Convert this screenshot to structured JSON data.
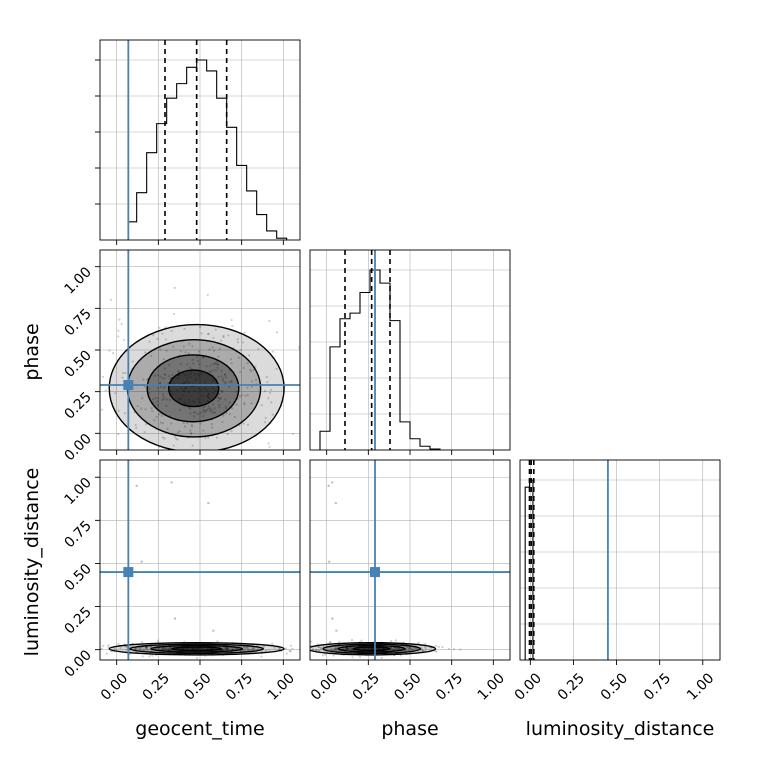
{
  "chart_data": {
    "type": "corner",
    "parameters": [
      "geocent_time",
      "phase",
      "luminosity_distance"
    ],
    "tick_labels": [
      "0.00",
      "0.25",
      "0.50",
      "0.75",
      "1.00"
    ],
    "truths": {
      "geocent_time": 0.07,
      "phase": 0.29,
      "luminosity_distance": 0.45
    },
    "quantiles": {
      "geocent_time": [
        0.29,
        0.48,
        0.66
      ],
      "phase": [
        0.11,
        0.27,
        0.38
      ],
      "luminosity_distance": [
        -0.005,
        0.005,
        0.02
      ]
    },
    "axes": {
      "geocent_time": {
        "range": [
          -0.1,
          1.1
        ]
      },
      "phase": {
        "range": [
          -0.1,
          1.1
        ]
      },
      "luminosity_distance": {
        "range": [
          -0.06,
          1.1
        ]
      }
    },
    "histograms": {
      "geocent_time": {
        "bin_edges": [
          0.07,
          0.12,
          0.18,
          0.24,
          0.3,
          0.36,
          0.42,
          0.48,
          0.54,
          0.6,
          0.66,
          0.72,
          0.78,
          0.84,
          0.9,
          0.96,
          1.02
        ],
        "counts": [
          0.1,
          0.26,
          0.48,
          0.64,
          0.78,
          0.86,
          0.95,
          0.99,
          0.93,
          0.78,
          0.62,
          0.41,
          0.27,
          0.14,
          0.05,
          0.01
        ]
      },
      "phase": {
        "bin_edges": [
          -0.04,
          0.02,
          0.08,
          0.14,
          0.2,
          0.26,
          0.32,
          0.38,
          0.44,
          0.5,
          0.56,
          0.62,
          0.68
        ],
        "counts": [
          0.1,
          0.55,
          0.7,
          0.73,
          0.84,
          0.96,
          0.89,
          0.69,
          0.15,
          0.06,
          0.02,
          0.005
        ]
      },
      "luminosity_distance": {
        "bin_edges": [
          -0.03,
          -0.005,
          0.015,
          0.035
        ],
        "counts": [
          0.96,
          1.0,
          0.0
        ]
      }
    },
    "grid": true
  }
}
